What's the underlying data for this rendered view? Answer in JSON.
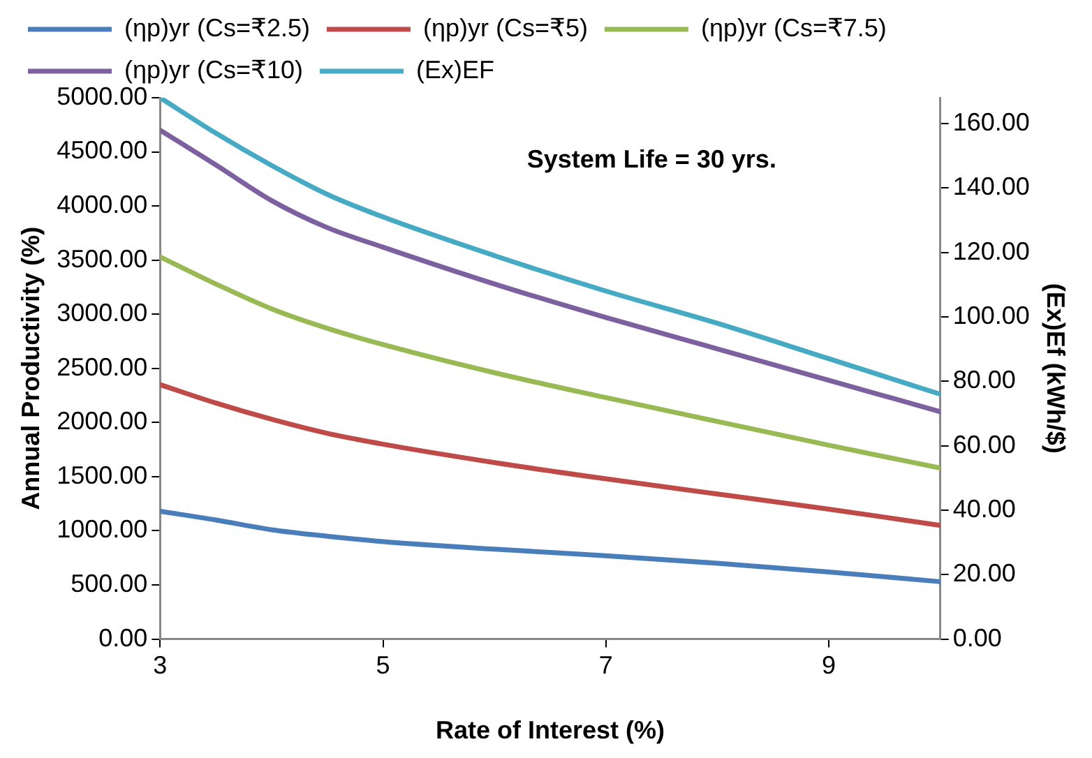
{
  "chart_data": {
    "type": "line",
    "xlabel": "Rate of Interest (%)",
    "ylabel": "Annual Productivity (%)",
    "y2label": "(Ex)Ef (kWh/$)",
    "x": [
      3,
      3.5,
      4,
      4.5,
      5,
      6,
      7,
      8,
      9,
      10
    ],
    "series": [
      {
        "name": "(ηp)yr (Cs=₹2.5)",
        "color": "#4a7ebb",
        "values": [
          1180,
          1100,
          1010,
          950,
          900,
          830,
          770,
          700,
          620,
          530
        ]
      },
      {
        "name": "(ηp)yr (Cs=₹5)",
        "color": "#be4b48",
        "values": [
          2350,
          2180,
          2030,
          1900,
          1800,
          1630,
          1480,
          1340,
          1200,
          1050
        ]
      },
      {
        "name": "(ηp)yr (Cs=₹7.5)",
        "color": "#98b954",
        "values": [
          3530,
          3280,
          3050,
          2870,
          2720,
          2460,
          2230,
          2010,
          1790,
          1580
        ]
      },
      {
        "name": "(ηp)yr (Cs=₹10)",
        "color": "#7d60a0",
        "values": [
          4700,
          4380,
          4050,
          3800,
          3620,
          3280,
          2970,
          2680,
          2390,
          2100
        ]
      },
      {
        "name": "(Ex)EF",
        "color": "#46aac5",
        "axis": "y2",
        "values": [
          168,
          157,
          147,
          138,
          131,
          119,
          108,
          98,
          87,
          76
        ]
      }
    ],
    "xlim": [
      3,
      10
    ],
    "xticks": [
      3,
      5,
      7,
      9
    ],
    "ylim": [
      0,
      5000
    ],
    "yticks": [
      {
        "value": 0,
        "label": "0.00"
      },
      {
        "value": 500,
        "label": "500.00"
      },
      {
        "value": 1000,
        "label": "1000.00"
      },
      {
        "value": 1500,
        "label": "1500.00"
      },
      {
        "value": 2000,
        "label": "2000.00"
      },
      {
        "value": 2500,
        "label": "2500.00"
      },
      {
        "value": 3000,
        "label": "3000.00"
      },
      {
        "value": 3500,
        "label": "3500.00"
      },
      {
        "value": 4000,
        "label": "4000.00"
      },
      {
        "value": 4500,
        "label": "4500.00"
      },
      {
        "value": 5000,
        "label": "5000.00"
      }
    ],
    "y2lim": [
      0,
      168
    ],
    "y2ticks": [
      {
        "value": 0,
        "label": "0.00"
      },
      {
        "value": 20,
        "label": "20.00"
      },
      {
        "value": 40,
        "label": "40.00"
      },
      {
        "value": 60,
        "label": "60.00"
      },
      {
        "value": 80,
        "label": "80.00"
      },
      {
        "value": 100,
        "label": "100.00"
      },
      {
        "value": 120,
        "label": "120.00"
      },
      {
        "value": 140,
        "label": "140.00"
      },
      {
        "value": 160,
        "label": "160.00"
      }
    ],
    "annotations": [
      "System Life = 30 yrs."
    ],
    "grid": false,
    "legend": "top",
    "marker": "none",
    "line_style": "solid"
  }
}
